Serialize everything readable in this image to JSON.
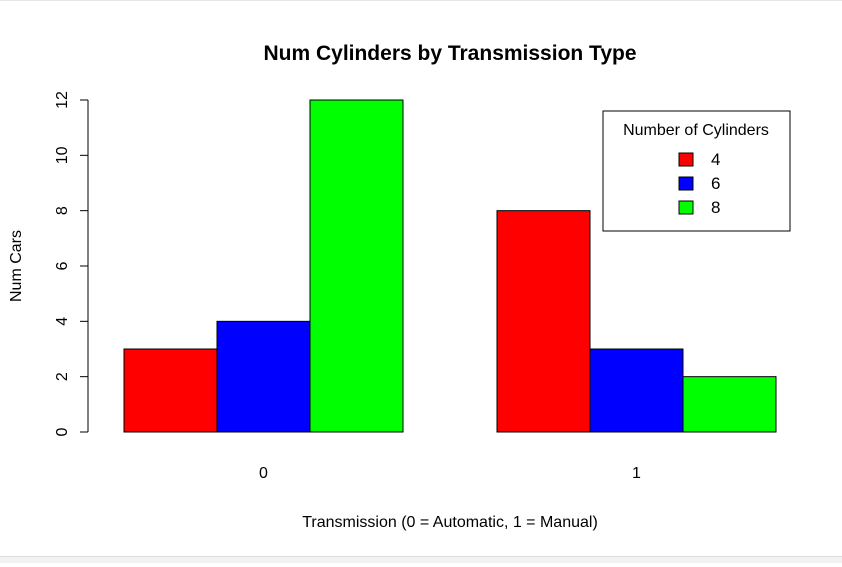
{
  "chart_data": {
    "type": "bar",
    "orientation": "vertical",
    "grouping": "dodged",
    "title": "Num Cylinders by Transmission Type",
    "xlabel": "Transmission (0 = Automatic, 1 = Manual)",
    "ylabel": "Num Cars",
    "categories": [
      "0",
      "1"
    ],
    "series": [
      {
        "name": "4",
        "color": "#ff0000",
        "values": [
          3,
          8
        ]
      },
      {
        "name": "6",
        "color": "#0000ff",
        "values": [
          4,
          3
        ]
      },
      {
        "name": "8",
        "color": "#00ff00",
        "values": [
          12,
          2
        ]
      }
    ],
    "ylim": [
      0,
      12
    ],
    "yticks": [
      "0",
      "2",
      "4",
      "6",
      "8",
      "10",
      "12"
    ],
    "grid": false,
    "legend": {
      "title": "Number of Cylinders",
      "placement": "top-right",
      "entries": [
        "4",
        "6",
        "8"
      ]
    }
  }
}
